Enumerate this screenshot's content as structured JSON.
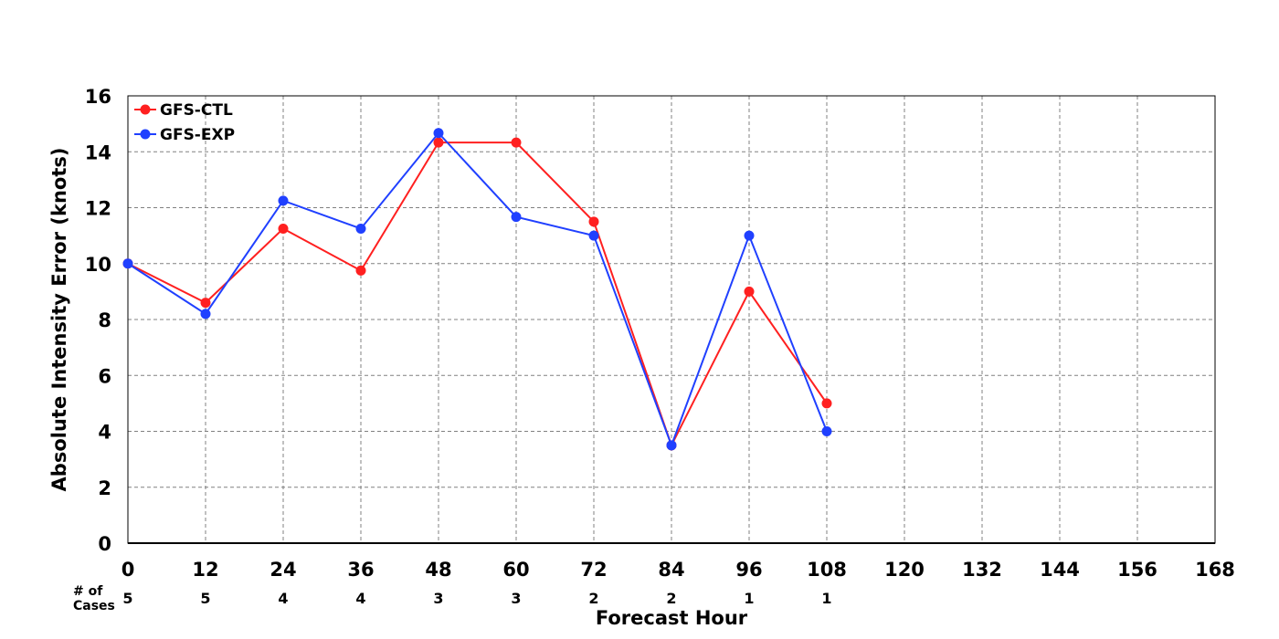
{
  "chart_data": {
    "type": "line",
    "xlabel": "Forecast Hour",
    "ylabel": "Absolute Intensity Error (knots)",
    "xlim": [
      0,
      168
    ],
    "ylim": [
      0,
      16
    ],
    "xticks": [
      0,
      12,
      24,
      36,
      48,
      60,
      72,
      84,
      96,
      108,
      120,
      132,
      144,
      156,
      168
    ],
    "yticks": [
      0,
      2,
      4,
      6,
      8,
      10,
      12,
      14,
      16
    ],
    "grid": true,
    "legend_position": "top-left",
    "x": [
      0,
      12,
      24,
      36,
      48,
      60,
      72,
      84,
      96,
      108
    ],
    "series": [
      {
        "name": "GFS-CTL",
        "color": "#ff2020",
        "values": [
          10.0,
          8.6,
          11.25,
          9.75,
          14.33,
          14.33,
          11.5,
          3.5,
          9.0,
          5.0
        ]
      },
      {
        "name": "GFS-EXP",
        "color": "#2040ff",
        "values": [
          10.0,
          8.2,
          12.25,
          11.25,
          14.67,
          11.67,
          11.0,
          3.5,
          11.0,
          4.0
        ]
      }
    ],
    "cases": {
      "label_line1": "# of",
      "label_line2": "Cases",
      "x": [
        0,
        12,
        24,
        36,
        48,
        60,
        72,
        84,
        96,
        108
      ],
      "values": [
        "5",
        "5",
        "4",
        "4",
        "3",
        "3",
        "2",
        "2",
        "1",
        "1"
      ]
    }
  }
}
